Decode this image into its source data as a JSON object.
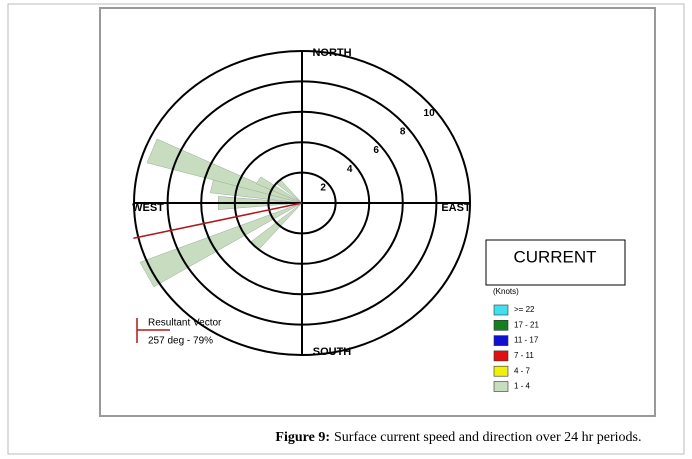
{
  "chart_data": {
    "type": "rose",
    "direction_labels": [
      "NORTH",
      "EAST",
      "SOUTH",
      "WEST"
    ],
    "x": [
      225,
      243,
      270,
      282,
      291,
      300,
      315
    ],
    "rlim": [
      0,
      10
    ],
    "rticks": [
      2,
      4,
      6,
      8,
      10
    ],
    "legend_title": "CURRENT",
    "legend_unit": "(Knots)",
    "series": [
      {
        "name": ">= 22",
        "color": "#40e0f0",
        "values": [
          null,
          null,
          null,
          null,
          null,
          null,
          null
        ]
      },
      {
        "name": "17 - 21",
        "color": "#108020",
        "values": [
          null,
          null,
          null,
          null,
          null,
          null,
          null
        ]
      },
      {
        "name": "11 - 17",
        "color": "#1010d0",
        "values": [
          null,
          null,
          null,
          null,
          null,
          null,
          null
        ]
      },
      {
        "name": "7 - 11",
        "color": "#e01010",
        "values": [
          null,
          null,
          null,
          null,
          null,
          null,
          null
        ]
      },
      {
        "name": "4 - 7",
        "color": "#f0f010",
        "values": [
          null,
          null,
          null,
          null,
          null,
          null,
          null
        ]
      },
      {
        "name": "1 - 4",
        "color": "#c8dcc0",
        "values": [
          4,
          10.4,
          5,
          5.5,
          9.6,
          3,
          2
        ]
      }
    ],
    "resultant": {
      "title": "Resultant Vector",
      "direction": 257,
      "percent": 79,
      "label": "257 deg - 79%",
      "color": "#b01818"
    }
  },
  "caption": {
    "label": "Figure 9:",
    "text": "Surface current speed and direction over 24 hr periods."
  }
}
